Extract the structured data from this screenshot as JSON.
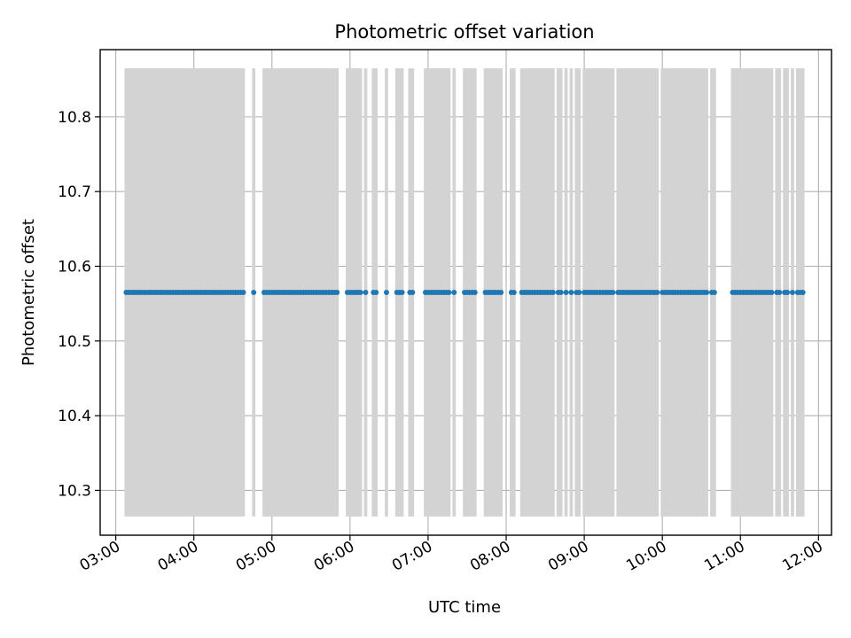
{
  "chart_data": {
    "type": "scatter",
    "title": "Photometric offset variation",
    "xlabel": "UTC time",
    "ylabel": "Photometric offset",
    "x_tick_labels": [
      "03:00",
      "04:00",
      "05:00",
      "06:00",
      "07:00",
      "08:00",
      "09:00",
      "10:00",
      "11:00",
      "12:00"
    ],
    "y_tick_labels": [
      "10.3",
      "10.4",
      "10.5",
      "10.6",
      "10.7",
      "10.8"
    ],
    "xlim": [
      "02:48",
      "12:10"
    ],
    "ylim": [
      10.24,
      10.89
    ],
    "grid": true,
    "legend": false,
    "point_value": 10.565,
    "error": 0.3,
    "errorbar_color": "#d3d3d3",
    "marker_color": "#1f77b4",
    "times": [
      "03:08",
      "03:10",
      "03:12",
      "03:14",
      "03:16",
      "03:18",
      "03:20",
      "03:22",
      "03:24",
      "03:26",
      "03:28",
      "03:30",
      "03:32",
      "03:34",
      "03:36",
      "03:38",
      "03:40",
      "03:42",
      "03:44",
      "03:46",
      "03:48",
      "03:50",
      "03:52",
      "03:54",
      "03:56",
      "03:58",
      "04:00",
      "04:02",
      "04:04",
      "04:06",
      "04:08",
      "04:10",
      "04:12",
      "04:14",
      "04:16",
      "04:18",
      "04:20",
      "04:22",
      "04:24",
      "04:26",
      "04:28",
      "04:30",
      "04:32",
      "04:34",
      "04:36",
      "04:38",
      "04:46",
      "04:54",
      "04:56",
      "04:58",
      "05:00",
      "05:02",
      "05:04",
      "05:06",
      "05:08",
      "05:10",
      "05:12",
      "05:14",
      "05:16",
      "05:18",
      "05:20",
      "05:22",
      "05:24",
      "05:26",
      "05:28",
      "05:30",
      "05:32",
      "05:34",
      "05:36",
      "05:38",
      "05:40",
      "05:42",
      "05:44",
      "05:46",
      "05:48",
      "05:50",
      "05:58",
      "06:00",
      "06:02",
      "06:04",
      "06:06",
      "06:08",
      "06:12",
      "06:18",
      "06:20",
      "06:28",
      "06:36",
      "06:38",
      "06:40",
      "06:46",
      "06:48",
      "06:58",
      "07:00",
      "07:02",
      "07:04",
      "07:06",
      "07:08",
      "07:10",
      "07:12",
      "07:14",
      "07:16",
      "07:20",
      "07:28",
      "07:30",
      "07:32",
      "07:34",
      "07:36",
      "07:44",
      "07:46",
      "07:48",
      "07:50",
      "07:52",
      "07:54",
      "07:56",
      "08:04",
      "08:06",
      "08:12",
      "08:14",
      "08:16",
      "08:18",
      "08:20",
      "08:22",
      "08:24",
      "08:26",
      "08:28",
      "08:30",
      "08:32",
      "08:34",
      "08:36",
      "08:40",
      "08:42",
      "08:46",
      "08:50",
      "08:54",
      "08:56",
      "09:00",
      "09:02",
      "09:04",
      "09:06",
      "09:08",
      "09:10",
      "09:12",
      "09:14",
      "09:16",
      "09:18",
      "09:20",
      "09:22",
      "09:26",
      "09:28",
      "09:30",
      "09:32",
      "09:34",
      "09:36",
      "09:38",
      "09:40",
      "09:42",
      "09:44",
      "09:46",
      "09:48",
      "09:50",
      "09:52",
      "09:54",
      "09:56",
      "10:00",
      "10:02",
      "10:04",
      "10:06",
      "10:08",
      "10:10",
      "10:12",
      "10:14",
      "10:16",
      "10:18",
      "10:20",
      "10:22",
      "10:24",
      "10:26",
      "10:28",
      "10:30",
      "10:32",
      "10:34",
      "10:38",
      "10:40",
      "10:54",
      "10:56",
      "10:58",
      "11:00",
      "11:02",
      "11:04",
      "11:06",
      "11:08",
      "11:10",
      "11:12",
      "11:14",
      "11:16",
      "11:18",
      "11:20",
      "11:22",
      "11:24",
      "11:28",
      "11:30",
      "11:34",
      "11:36",
      "11:40",
      "11:44",
      "11:46",
      "11:48"
    ]
  }
}
